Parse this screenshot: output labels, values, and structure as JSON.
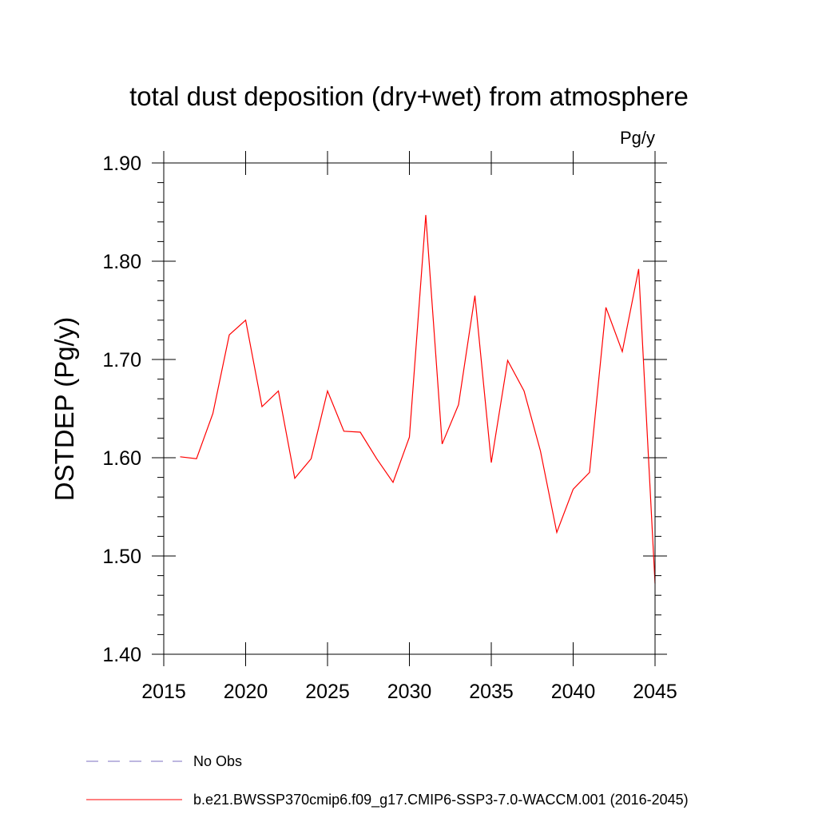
{
  "chart_data": {
    "type": "line",
    "title": "total dust deposition (dry+wet) from atmosphere",
    "units": "Pg/y",
    "ylabel": "DSTDEP  (Pg/y)",
    "xlabel": "",
    "xlim": [
      2015,
      2045
    ],
    "ylim": [
      1.4,
      1.9
    ],
    "xticks": [
      "2015",
      "2020",
      "2025",
      "2030",
      "2035",
      "2040",
      "2045"
    ],
    "yticks": [
      "1.40",
      "1.50",
      "1.60",
      "1.70",
      "1.80",
      "1.90"
    ],
    "grid": false,
    "series": [
      {
        "name": "b.e21.BWSSP370cmip6.f09_g17.CMIP6-SSP3-7.0-WACCM.001 (2016-2045)",
        "color": "#ff0000",
        "x": [
          2016,
          2017,
          2018,
          2019,
          2020,
          2021,
          2022,
          2023,
          2024,
          2025,
          2026,
          2027,
          2028,
          2029,
          2030,
          2031,
          2032,
          2033,
          2034,
          2035,
          2036,
          2037,
          2038,
          2039,
          2040,
          2041,
          2042,
          2043,
          2044,
          2045
        ],
        "y": [
          1.601,
          1.599,
          1.645,
          1.725,
          1.74,
          1.652,
          1.668,
          1.579,
          1.599,
          1.668,
          1.627,
          1.626,
          1.599,
          1.575,
          1.621,
          1.847,
          1.614,
          1.654,
          1.765,
          1.595,
          1.699,
          1.668,
          1.607,
          1.524,
          1.568,
          1.585,
          1.753,
          1.708,
          1.792,
          1.472
        ]
      }
    ],
    "legend": [
      {
        "label": "No Obs",
        "style": "dashed",
        "color": "#7b6fc0"
      },
      {
        "label": "b.e21.BWSSP370cmip6.f09_g17.CMIP6-SSP3-7.0-WACCM.001 (2016-2045)",
        "style": "solid",
        "color": "#ff0000"
      }
    ]
  }
}
